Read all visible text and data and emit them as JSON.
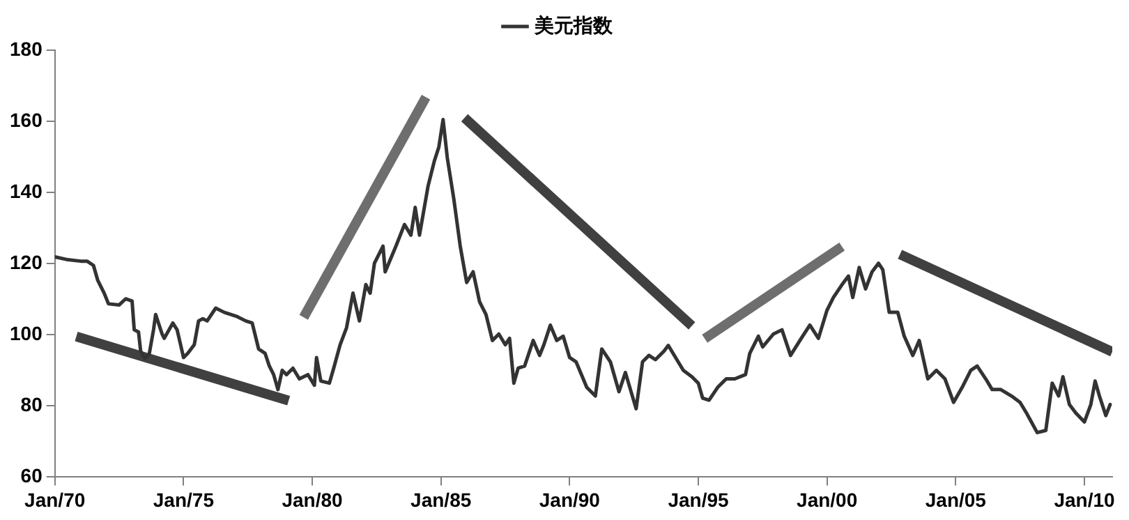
{
  "chart_data": {
    "type": "line",
    "legend": "top",
    "grid": false,
    "marker": "none",
    "line_style": "solid",
    "xlim": [
      "1970-01",
      "2011-02"
    ],
    "xticks": [
      {
        "value": "1970-01",
        "label": "Jan/70"
      },
      {
        "value": "1975-01",
        "label": "Jan/75"
      },
      {
        "value": "1980-01",
        "label": "Jan/80"
      },
      {
        "value": "1985-01",
        "label": "Jan/85"
      },
      {
        "value": "1990-01",
        "label": "Jan/90"
      },
      {
        "value": "1995-01",
        "label": "Jan/95"
      },
      {
        "value": "2000-01",
        "label": "Jan/00"
      },
      {
        "value": "2005-01",
        "label": "Jan/05"
      },
      {
        "value": "2010-01",
        "label": "Jan/10"
      }
    ],
    "ylim": [
      60,
      180
    ],
    "yticks": [
      60,
      80,
      100,
      120,
      140,
      160,
      180
    ],
    "series": [
      {
        "name": "美元指数",
        "color": "#333333",
        "x": [
          "1970-01",
          "1970-07",
          "1971-01",
          "1971-04",
          "1971-07",
          "1971-09",
          "1971-12",
          "1972-02",
          "1972-07",
          "1972-10",
          "1973-01",
          "1973-02",
          "1973-04",
          "1973-05",
          "1973-07",
          "1973-09",
          "1973-11",
          "1973-12",
          "1974-03",
          "1974-04",
          "1974-08",
          "1974-10",
          "1975-01",
          "1975-03",
          "1975-06",
          "1975-08",
          "1975-10",
          "1975-12",
          "1976-04",
          "1976-08",
          "1977-02",
          "1977-06",
          "1977-09",
          "1977-12",
          "1978-03",
          "1978-05",
          "1978-07",
          "1978-09",
          "1978-11",
          "1979-01",
          "1979-04",
          "1979-07",
          "1979-11",
          "1980-02",
          "1980-03",
          "1980-05",
          "1980-09",
          "1980-11",
          "1981-02",
          "1981-05",
          "1981-08",
          "1981-11",
          "1982-02",
          "1982-04",
          "1982-06",
          "1982-10",
          "1982-11",
          "1983-04",
          "1983-08",
          "1983-11",
          "1984-01",
          "1984-03",
          "1984-07",
          "1984-10",
          "1984-12",
          "1985-02",
          "1985-04",
          "1985-07",
          "1985-10",
          "1986-01",
          "1986-04",
          "1986-07",
          "1986-10",
          "1987-01",
          "1987-04",
          "1987-07",
          "1987-09",
          "1987-11",
          "1988-01",
          "1988-04",
          "1988-08",
          "1988-11",
          "1989-01",
          "1989-04",
          "1989-07",
          "1989-10",
          "1990-01",
          "1990-04",
          "1990-09",
          "1991-01",
          "1991-04",
          "1991-08",
          "1991-12",
          "1992-03",
          "1992-08",
          "1992-11",
          "1993-02",
          "1993-05",
          "1993-09",
          "1993-11",
          "1994-03",
          "1994-06",
          "1994-10",
          "1995-01",
          "1995-03",
          "1995-06",
          "1995-10",
          "1996-02",
          "1996-06",
          "1996-11",
          "1997-01",
          "1997-05",
          "1997-07",
          "1997-12",
          "1998-04",
          "1998-08",
          "1999-01",
          "1999-05",
          "1999-09",
          "2000-01",
          "2000-04",
          "2000-08",
          "2000-11",
          "2001-01",
          "2001-04",
          "2001-07",
          "2001-10",
          "2002-01",
          "2002-03",
          "2002-06",
          "2002-10",
          "2003-01",
          "2003-05",
          "2003-08",
          "2003-12",
          "2004-04",
          "2004-08",
          "2004-12",
          "2005-04",
          "2005-08",
          "2005-11",
          "2006-03",
          "2006-06",
          "2006-10",
          "2007-03",
          "2007-07",
          "2007-10",
          "2008-03",
          "2008-07",
          "2008-10",
          "2009-01",
          "2009-03",
          "2009-06",
          "2009-09",
          "2010-01",
          "2010-04",
          "2010-06",
          "2010-08",
          "2010-11",
          "2011-01"
        ],
        "values": [
          121.9,
          121.1,
          120.7,
          120.7,
          119.5,
          115.3,
          111.7,
          108.7,
          108.4,
          110.1,
          109.5,
          101.4,
          100.8,
          95.4,
          93.4,
          94.6,
          101.4,
          105.7,
          100.2,
          99.0,
          103.3,
          101.4,
          93.6,
          94.8,
          97.2,
          103.9,
          104.5,
          103.9,
          107.5,
          106.3,
          105.1,
          103.9,
          103.3,
          96.0,
          94.8,
          91.2,
          88.8,
          84.6,
          90.0,
          88.8,
          90.6,
          87.6,
          88.8,
          85.8,
          93.6,
          87.0,
          86.4,
          90.6,
          97.2,
          102.0,
          111.7,
          103.9,
          114.1,
          111.7,
          120.1,
          124.9,
          117.7,
          124.9,
          131.0,
          128.0,
          135.8,
          128.0,
          141.8,
          149.0,
          152.7,
          160.5,
          149.6,
          138.2,
          124.9,
          114.7,
          117.7,
          109.3,
          105.7,
          98.4,
          100.2,
          97.2,
          99.0,
          86.4,
          90.6,
          91.2,
          98.4,
          94.2,
          97.2,
          102.7,
          98.4,
          99.6,
          93.6,
          92.4,
          85.2,
          82.8,
          96.0,
          92.4,
          84.0,
          89.4,
          79.2,
          92.4,
          94.2,
          93.0,
          95.4,
          97.0,
          93.0,
          90.0,
          88.2,
          86.4,
          82.2,
          81.6,
          85.2,
          87.6,
          87.6,
          88.8,
          94.8,
          99.6,
          96.6,
          100.2,
          101.4,
          94.2,
          99.0,
          102.7,
          99.0,
          106.9,
          110.5,
          114.1,
          116.5,
          110.5,
          118.9,
          112.9,
          117.7,
          120.1,
          118.3,
          106.3,
          106.3,
          99.6,
          94.2,
          98.4,
          87.6,
          90.0,
          87.6,
          81.0,
          85.2,
          90.0,
          91.2,
          87.6,
          84.6,
          84.6,
          82.8,
          81.0,
          78.0,
          72.5,
          73.1,
          86.4,
          82.8,
          88.2,
          80.4,
          78.0,
          75.5,
          80.4,
          87.0,
          82.8,
          77.3,
          80.4
        ]
      },
      {
        "type": "line",
        "color": "#404040",
        "x": [
          "1970-11",
          "1979-02"
        ],
        "values": [
          99.5,
          81.5
        ]
      },
      {
        "type": "line",
        "color": "#6e6e6e",
        "x": [
          "1979-09",
          "1984-06"
        ],
        "values": [
          104.9,
          166.8
        ]
      },
      {
        "type": "line",
        "color": "#404040",
        "x": [
          "1985-12",
          "1994-10"
        ],
        "values": [
          161.0,
          102.5
        ]
      },
      {
        "type": "line",
        "color": "#6e6e6e",
        "x": [
          "1995-04",
          "2000-08"
        ],
        "values": [
          98.9,
          124.8
        ]
      },
      {
        "type": "line",
        "color": "#404040",
        "x": [
          "2002-11",
          "2011-02"
        ],
        "values": [
          122.6,
          95.2
        ]
      }
    ]
  }
}
